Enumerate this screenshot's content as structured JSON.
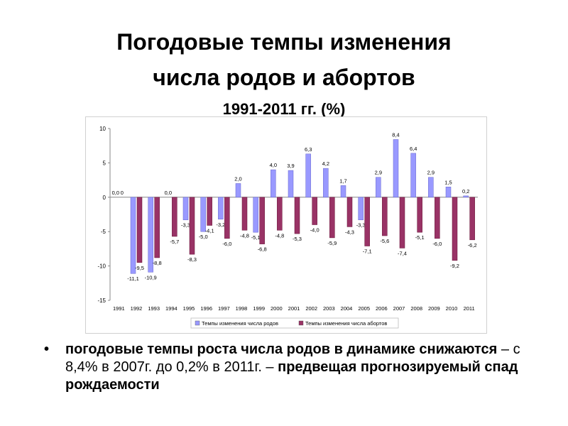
{
  "title": {
    "line1": "Погодовые темпы изменения",
    "line2": "числа родов и абортов",
    "line3": "1991-2011 гг. (%)"
  },
  "bullet": {
    "marker": "•",
    "bold_part": "погодовые темпы роста числа родов в динамике снижаются",
    "normal_part": " – с 8,4% в 2007г. до 0,2% в 2011г. – ",
    "bold_tail": "предвещая прогнозируемый спад рождаемости"
  },
  "chart_data": {
    "type": "bar",
    "categories": [
      "1991",
      "1992",
      "1993",
      "1994",
      "1995",
      "1996",
      "1997",
      "1998",
      "1999",
      "2000",
      "2001",
      "2002",
      "2003",
      "2004",
      "2005",
      "2006",
      "2007",
      "2008",
      "2009",
      "2010",
      "2011"
    ],
    "series": [
      {
        "name": "Темпы изменения числа родов",
        "color": "#9999ff",
        "values": [
          0.0,
          -11.1,
          -10.9,
          0.0,
          -3.3,
          -5.0,
          -3.2,
          2.0,
          -5.1,
          4.0,
          3.9,
          6.3,
          4.2,
          1.7,
          -3.3,
          2.9,
          8.4,
          6.4,
          2.9,
          1.5,
          0.2
        ],
        "labels": [
          "0,0",
          "-11,1",
          "-10,9",
          "0,0",
          "-3,3",
          "-5,0",
          "-3,2",
          "2,0",
          "-5,1",
          "4,0",
          "3,9",
          "6,3",
          "4,2",
          "1,7",
          "-3,3",
          "2,9",
          "8,4",
          "6,4",
          "2,9",
          "1,5",
          "0,2"
        ]
      },
      {
        "name": "Темпы изменения числа абортов",
        "color": "#993366",
        "values": [
          0.0,
          -9.5,
          -8.8,
          -5.7,
          -8.3,
          -4.1,
          -6.0,
          -4.8,
          -6.8,
          -4.8,
          -5.3,
          -4.0,
          -5.9,
          -4.3,
          -7.1,
          -5.6,
          -7.4,
          -5.1,
          -6.0,
          -9.2,
          -6.2
        ],
        "labels": [
          "0",
          "-9,5",
          "-8,8",
          "-5,7",
          "-8,3",
          "-4,1",
          "-6,0",
          "-4,8",
          "-6,8",
          "-4,8",
          "-5,3",
          "-4,0",
          "-5,9",
          "-4,3",
          "-7,1",
          "-5,6",
          "-7,4",
          "-5,1",
          "-6,0",
          "-9,2",
          "-6,2"
        ]
      }
    ],
    "ylim": [
      -15,
      10
    ],
    "yticks": [
      10,
      5,
      0,
      -5,
      -10,
      -15
    ],
    "ytick_labels": [
      "10",
      "5",
      "0",
      "-5",
      "-10",
      "-15"
    ],
    "grid": false,
    "legend_position": "bottom"
  }
}
